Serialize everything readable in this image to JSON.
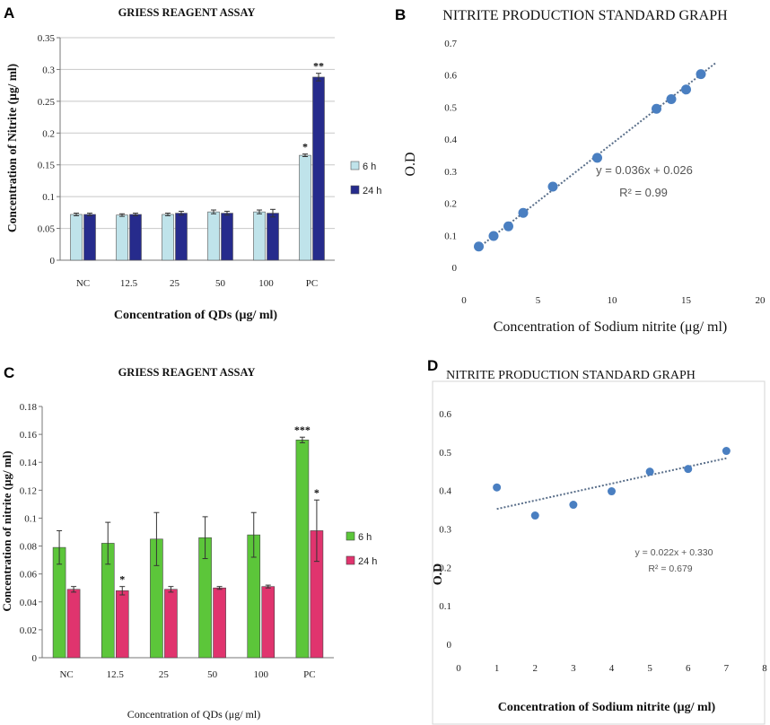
{
  "panels": {
    "A": "A",
    "B": "B",
    "C": "C",
    "D": "D"
  },
  "chart_data": [
    {
      "panel": "A",
      "type": "bar",
      "title": "GRIESS REAGENT ASSAY",
      "xlabel": "Concentration of QDs (μg/ ml)",
      "ylabel": "Concentration of Nitrite (μg/ ml)",
      "categories": [
        "NC",
        "12.5",
        "25",
        "50",
        "100",
        "PC"
      ],
      "ylim": [
        0,
        0.35
      ],
      "yticks": [
        0,
        0.05,
        0.1,
        0.15,
        0.2,
        0.25,
        0.3,
        0.35
      ],
      "ytick_labels": [
        "0",
        "0.05",
        "0.1",
        "0.15",
        "0.2",
        "0.25",
        "0.3",
        "0.35"
      ],
      "grid": true,
      "legend_position": "right",
      "series": [
        {
          "name": "6 h",
          "color": "#bfe3ea",
          "values": [
            0.072,
            0.071,
            0.072,
            0.076,
            0.076,
            0.165
          ],
          "errors": [
            0.002,
            0.002,
            0.002,
            0.003,
            0.003,
            0.002
          ],
          "annotations": [
            "",
            "",
            "",
            "",
            "",
            "*"
          ]
        },
        {
          "name": "24 h",
          "color": "#262b8c",
          "values": [
            0.072,
            0.072,
            0.074,
            0.074,
            0.074,
            0.288
          ],
          "errors": [
            0.002,
            0.002,
            0.003,
            0.003,
            0.006,
            0.006
          ],
          "annotations": [
            "",
            "",
            "",
            "",
            "",
            "**"
          ]
        }
      ]
    },
    {
      "panel": "B",
      "type": "scatter",
      "title": "NITRITE PRODUCTION STANDARD GRAPH",
      "xlabel": "Concentration of Sodium nitrite (μg/ ml)",
      "ylabel": "O.D",
      "xlim": [
        0,
        20
      ],
      "ylim": [
        0,
        0.7
      ],
      "xticks": [
        0,
        5,
        10,
        15,
        20
      ],
      "xtick_labels": [
        "0",
        "5",
        "10",
        "15",
        "20"
      ],
      "yticks": [
        0,
        0.1,
        0.2,
        0.3,
        0.4,
        0.5,
        0.6,
        0.7
      ],
      "ytick_labels": [
        "0",
        "0.1",
        "0.2",
        "0.3",
        "0.4",
        "0.5",
        "0.6",
        "0.7"
      ],
      "color": "#4a7fc1",
      "points": [
        [
          1,
          0.065
        ],
        [
          2,
          0.098
        ],
        [
          3,
          0.128
        ],
        [
          4,
          0.17
        ],
        [
          6,
          0.252
        ],
        [
          9,
          0.342
        ],
        [
          13,
          0.495
        ],
        [
          14,
          0.525
        ],
        [
          15,
          0.555
        ],
        [
          16,
          0.603
        ]
      ],
      "trendline": {
        "slope": 0.036,
        "intercept": 0.026,
        "x_range": [
          1,
          17
        ]
      },
      "equation": "y = 0.036x + 0.026",
      "r2": "R² = 0.99"
    },
    {
      "panel": "C",
      "type": "bar",
      "title": "GRIESS REAGENT ASSAY",
      "xlabel": "Concentration of QDs (μg/ ml)",
      "ylabel": "Concentration of nitrite (μg/ ml)",
      "categories": [
        "NC",
        "12.5",
        "25",
        "50",
        "100",
        "PC"
      ],
      "ylim": [
        0,
        0.18
      ],
      "yticks": [
        0,
        0.02,
        0.04,
        0.06,
        0.08,
        0.1,
        0.12,
        0.14,
        0.16,
        0.18
      ],
      "ytick_labels": [
        "0",
        "0.02",
        "0.04",
        "0.06",
        "0.08",
        "0.1",
        "0.12",
        "0.14",
        "0.16",
        "0.18"
      ],
      "grid": false,
      "legend_position": "right",
      "series": [
        {
          "name": "6 h",
          "color": "#5cc63a",
          "values": [
            0.079,
            0.082,
            0.085,
            0.086,
            0.088,
            0.156
          ],
          "errors": [
            0.012,
            0.015,
            0.019,
            0.015,
            0.016,
            0.002
          ],
          "annotations": [
            "",
            "",
            "",
            "",
            "",
            "***"
          ]
        },
        {
          "name": "24 h",
          "color": "#e0346e",
          "values": [
            0.049,
            0.048,
            0.049,
            0.05,
            0.051,
            0.091
          ],
          "errors": [
            0.002,
            0.003,
            0.002,
            0.001,
            0.001,
            0.022
          ],
          "annotations": [
            "",
            "*",
            "",
            "",
            "",
            "*"
          ]
        }
      ]
    },
    {
      "panel": "D",
      "type": "scatter",
      "title": "NITRITE PRODUCTION STANDARD GRAPH",
      "xlabel": "Concentration of Sodium nitrite (μg/ ml)",
      "ylabel": "O.D",
      "xlim": [
        0,
        8
      ],
      "ylim": [
        0,
        0.6
      ],
      "xticks": [
        0,
        1,
        2,
        3,
        4,
        5,
        6,
        7,
        8
      ],
      "xtick_labels": [
        "0",
        "1",
        "2",
        "3",
        "4",
        "5",
        "6",
        "7",
        "8"
      ],
      "yticks": [
        0,
        0.1,
        0.2,
        0.3,
        0.4,
        0.5,
        0.6
      ],
      "ytick_labels": [
        "0",
        "0.1",
        "0.2",
        "0.3",
        "0.4",
        "0.5",
        "0.6"
      ],
      "color": "#4a7fc1",
      "points": [
        [
          1,
          0.408
        ],
        [
          2,
          0.335
        ],
        [
          3,
          0.363
        ],
        [
          4,
          0.398
        ],
        [
          5,
          0.449
        ],
        [
          6,
          0.456
        ],
        [
          7,
          0.503
        ]
      ],
      "trendline": {
        "slope": 0.022,
        "intercept": 0.33,
        "x_range": [
          1,
          7
        ]
      },
      "equation": "y = 0.022x + 0.330",
      "r2": "R² = 0.679"
    }
  ]
}
